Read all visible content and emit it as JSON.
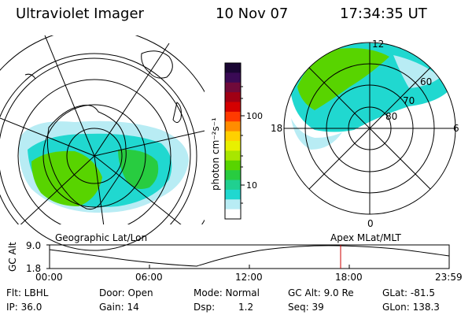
{
  "header": {
    "instrument": "Ultraviolet Imager",
    "date": "10 Nov 07",
    "time": "17:34:35 UT"
  },
  "colorbar": {
    "unit_label": "photon cm⁻²s⁻¹",
    "ticks": [
      "100",
      "10"
    ],
    "colors": [
      "#1a0633",
      "#3a0a55",
      "#700a3a",
      "#a00014",
      "#d40000",
      "#ff3a00",
      "#ff8c00",
      "#ffd000",
      "#e8f000",
      "#a8e600",
      "#58d400",
      "#28cc40",
      "#20d090",
      "#20d8d0",
      "#b8ecf4",
      "#ffffff"
    ]
  },
  "right_panel": {
    "mlt_labels": [
      "12",
      "18",
      "6",
      "0"
    ],
    "mlat_labels": [
      "60",
      "70",
      "80"
    ]
  },
  "timeline": {
    "left_title": "Geographic Lat/Lon",
    "right_title": "Apex MLat/MLT",
    "axis_label": "GC Alt",
    "y_ticks": [
      "9.0",
      "1.8"
    ],
    "x_ticks": [
      "00:00",
      "06:00",
      "12:00",
      "18:00",
      "23:59"
    ],
    "marker_color": "#cc0000"
  },
  "info": {
    "flt": "Flt: LBHL",
    "ip": "IP: 36.0",
    "door": "Door: Open",
    "gain": "Gain: 14",
    "mode": "Mode: Normal",
    "dsp_label": "Dsp:",
    "dsp_value": "1.2",
    "gcalt": "GC Alt: 9.0 Re",
    "seq": "Seq: 39",
    "glat": "GLat: -81.5",
    "glon": "GLon: 138.3"
  }
}
